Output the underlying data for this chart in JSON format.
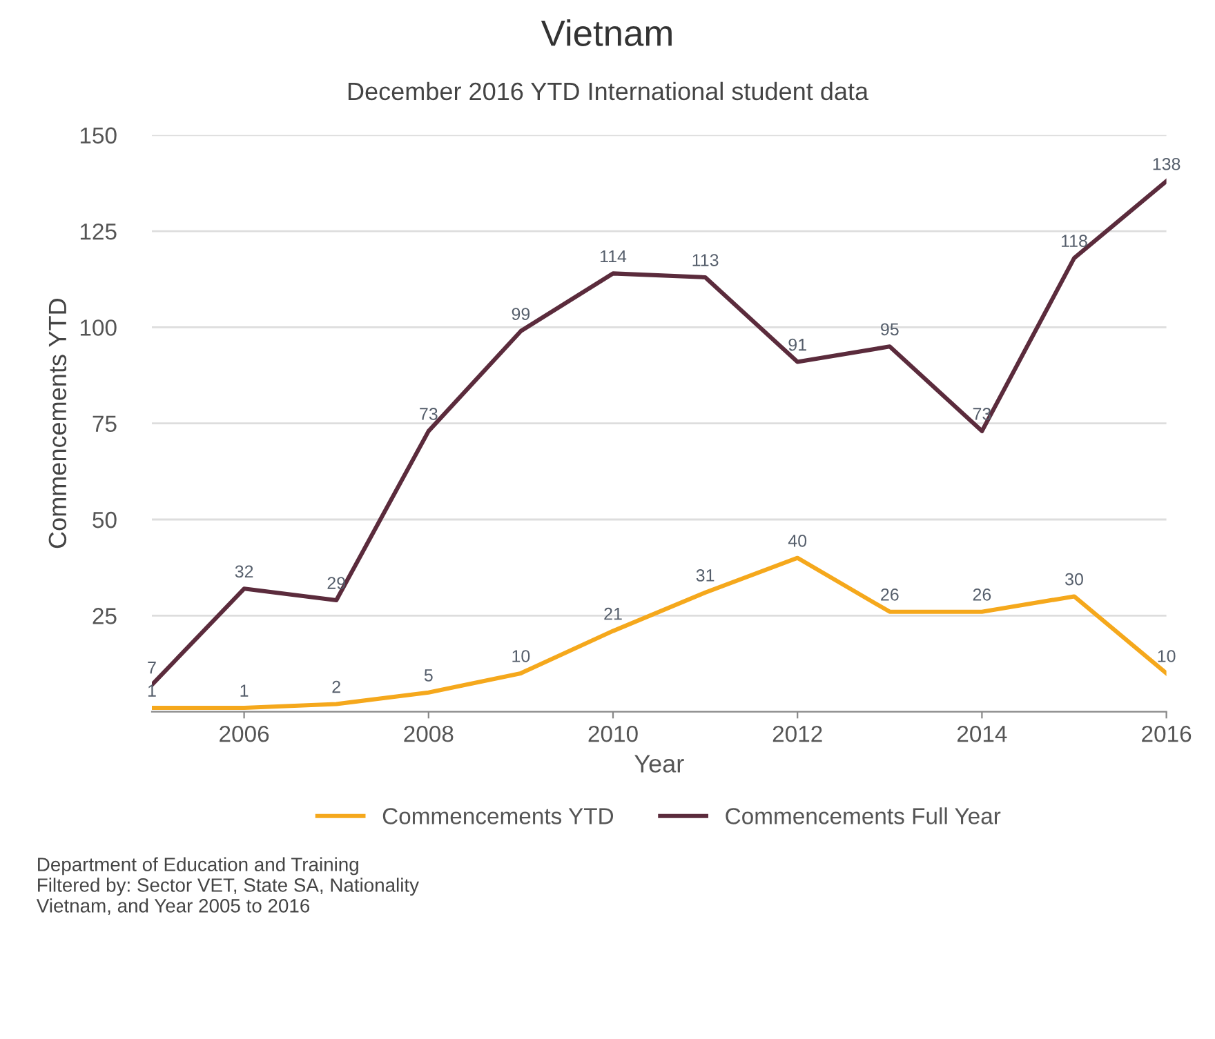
{
  "chart_data": {
    "type": "line",
    "title": "Vietnam",
    "subtitle": "December 2016 YTD International student data",
    "xlabel": "Year",
    "ylabel": "Commencements YTD",
    "x": [
      2005,
      2006,
      2007,
      2008,
      2009,
      2010,
      2011,
      2012,
      2013,
      2014,
      2015,
      2016
    ],
    "series": [
      {
        "name": "Commencements YTD",
        "color": "#f5a81c",
        "values": [
          1,
          1,
          2,
          5,
          10,
          21,
          31,
          40,
          26,
          26,
          30,
          10
        ]
      },
      {
        "name": "Commencements Full Year",
        "color": "#5b2b3c",
        "values": [
          7,
          32,
          29,
          73,
          99,
          114,
          113,
          91,
          95,
          73,
          118,
          138
        ]
      }
    ],
    "xlim": [
      2005,
      2016
    ],
    "xticks": [
      2006,
      2008,
      2010,
      2012,
      2014,
      2016
    ],
    "ylim": [
      0,
      150
    ],
    "yticks": [
      25,
      50,
      75,
      100,
      125,
      150
    ],
    "grid": "y",
    "legend": "bottom",
    "data_labels": true,
    "marker": "none",
    "line_style": "solid",
    "annotations": [
      "Department of Education and Training\nFiltered by: Sector VET, State SA, Nationality\nVietnam, and Year 2005 to 2016"
    ]
  }
}
